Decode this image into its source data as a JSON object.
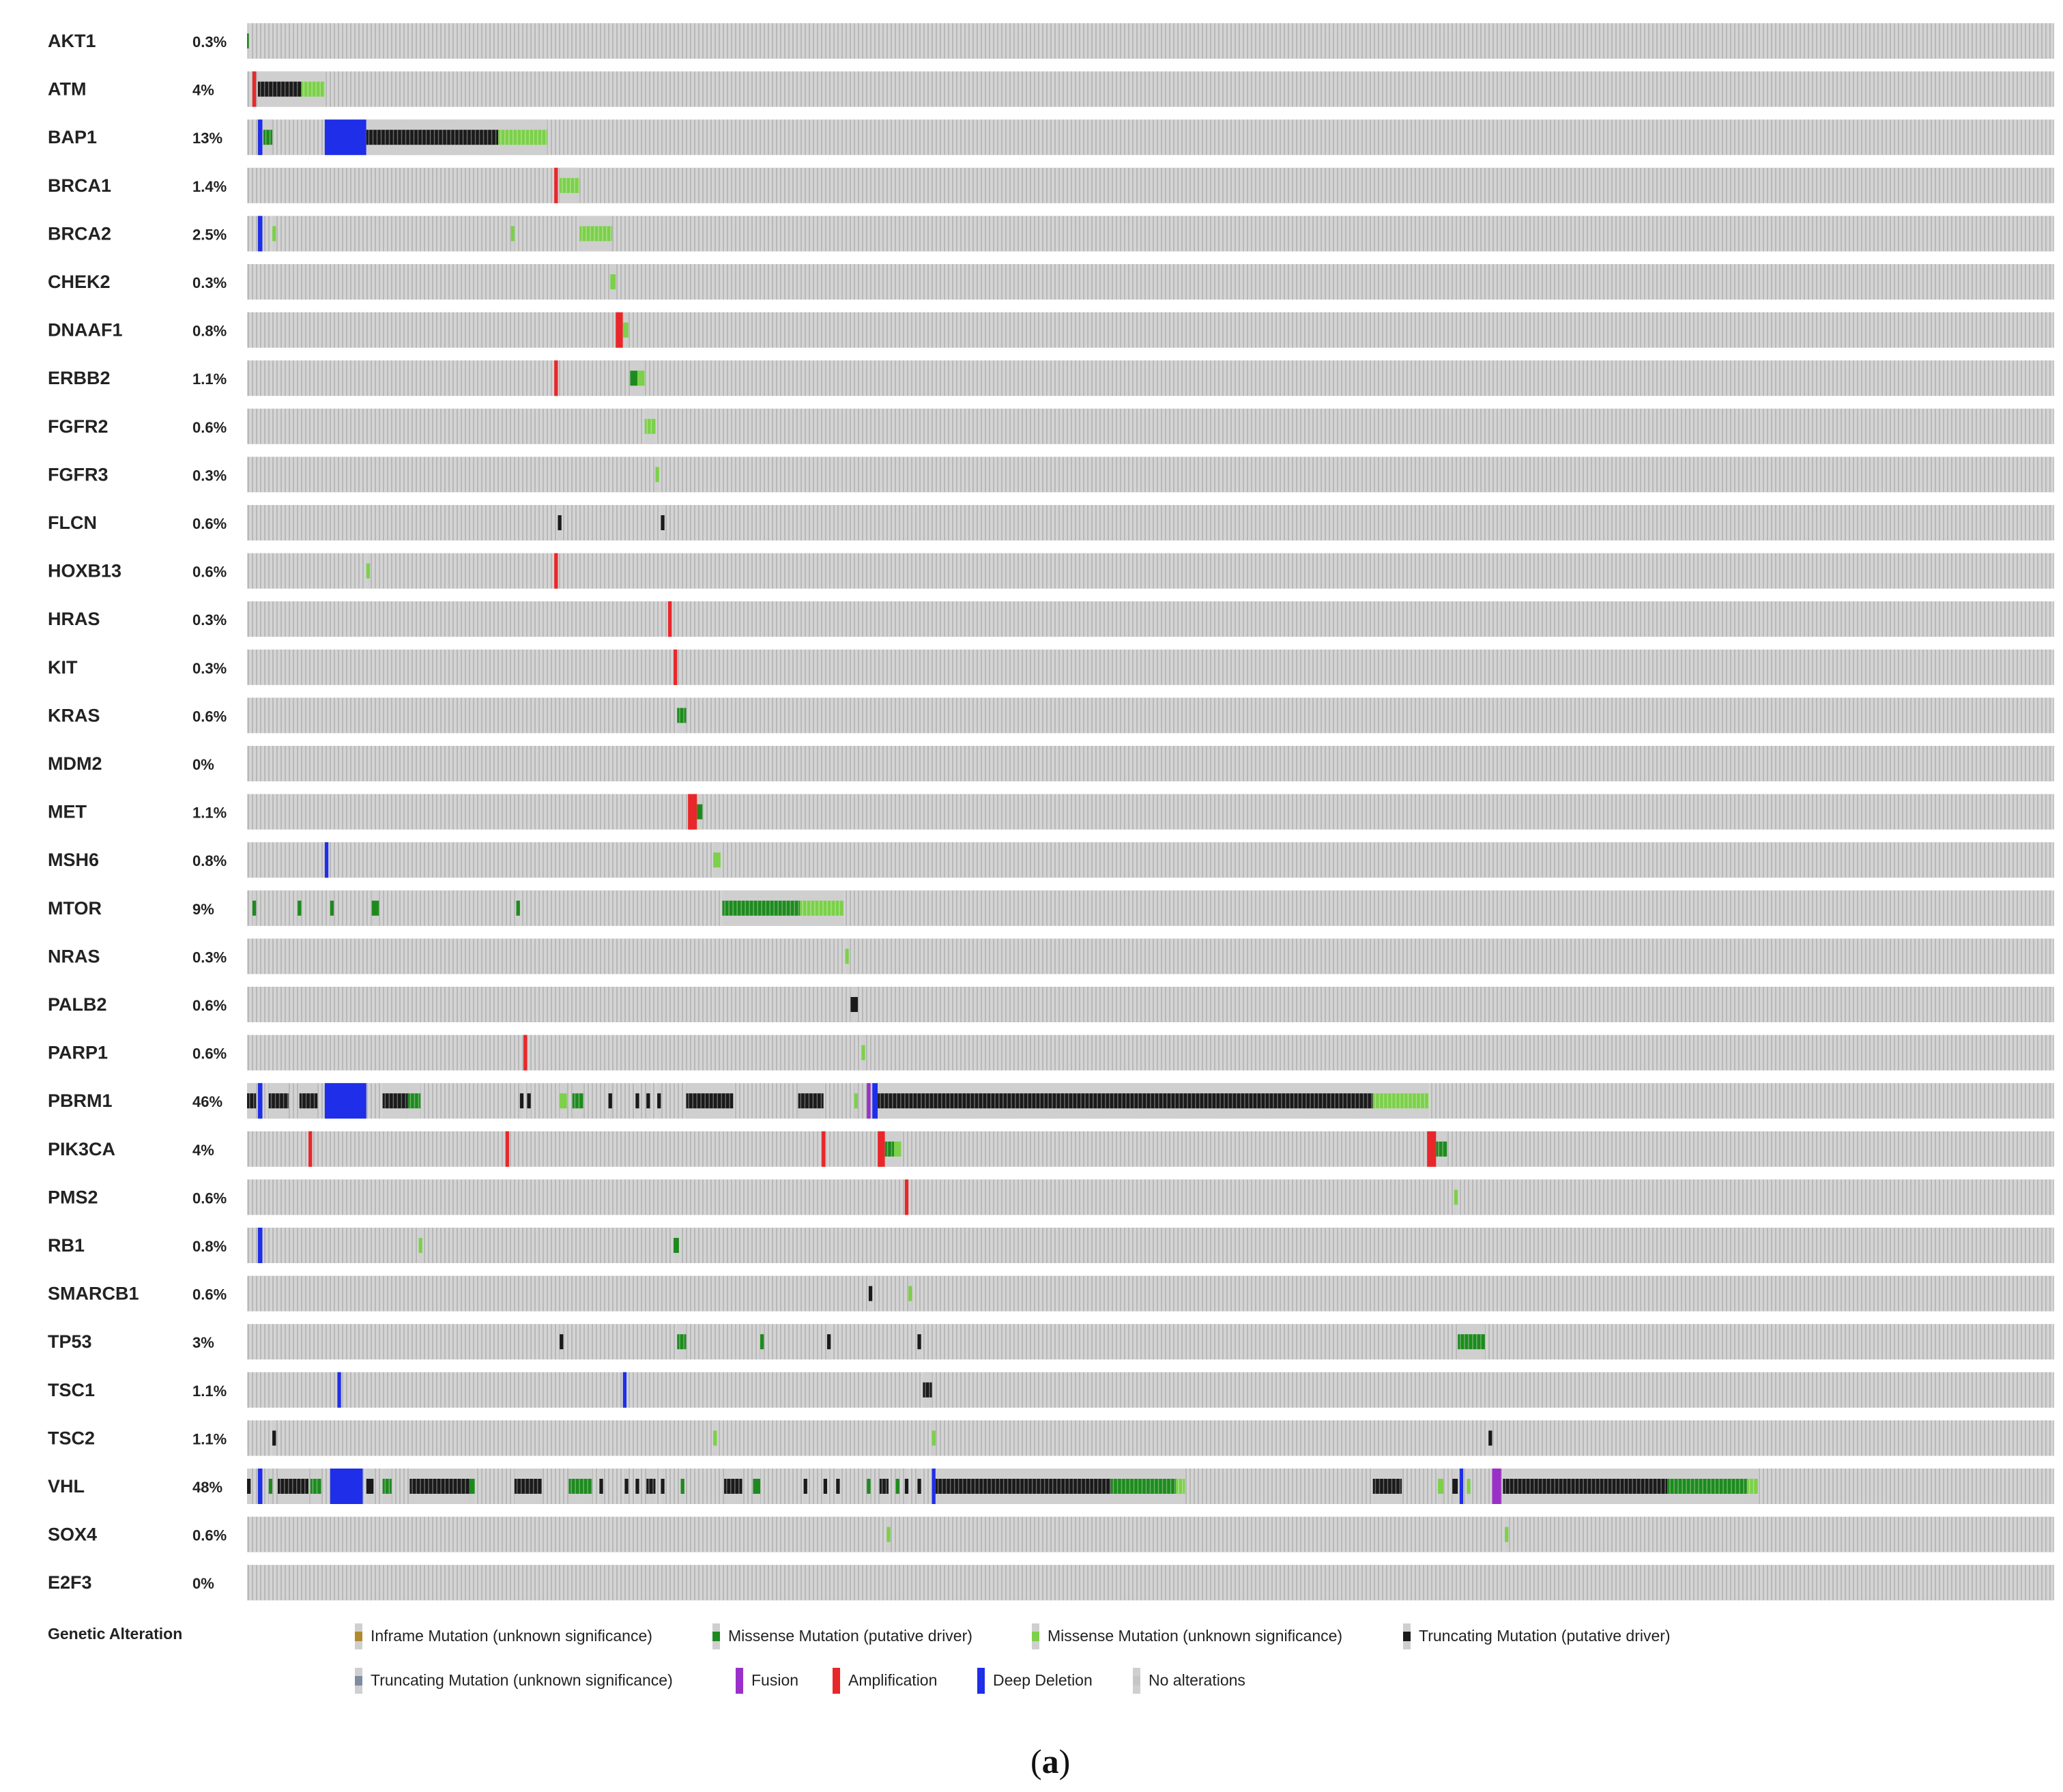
{
  "chart_data": {
    "type": "heatmap",
    "subtype": "oncoprint",
    "colors": {
      "background": "#d4d4d4",
      "stripe": "#b8b8b8",
      "inframe_unknown": "#b08a2c",
      "missense_driver": "#1e8a1e",
      "missense_unknown": "#7cd04a",
      "truncating_driver": "#1a1a1a",
      "truncating_unknown": "#7f8ba0",
      "fusion": "#9b30c8",
      "amplification": "#e8272a",
      "deep_deletion": "#1f2ee8",
      "no_alteration": "#c6c6c6"
    },
    "genes": [
      {
        "name": "AKT1",
        "pct": "0.3%",
        "segs": [
          [
            0.0,
            0.1,
            "missense_driver"
          ]
        ]
      },
      {
        "name": "ATM",
        "pct": "4%",
        "segs": [
          [
            0.3,
            0.5,
            "amplification"
          ],
          [
            0.6,
            3.0,
            "truncating_driver"
          ],
          [
            3.0,
            4.3,
            "missense_unknown"
          ]
        ]
      },
      {
        "name": "BAP1",
        "pct": "13%",
        "segs": [
          [
            0.6,
            0.85,
            "deep_deletion"
          ],
          [
            0.9,
            1.4,
            "missense_driver"
          ],
          [
            4.3,
            6.6,
            "deep_deletion"
          ],
          [
            6.6,
            13.9,
            "truncating_driver"
          ],
          [
            13.9,
            16.6,
            "missense_unknown"
          ]
        ]
      },
      {
        "name": "BRCA1",
        "pct": "1.4%",
        "segs": [
          [
            17.0,
            17.2,
            "amplification"
          ],
          [
            17.3,
            18.4,
            "missense_unknown"
          ]
        ]
      },
      {
        "name": "BRCA2",
        "pct": "2.5%",
        "segs": [
          [
            0.6,
            0.85,
            "deep_deletion"
          ],
          [
            1.4,
            1.6,
            "missense_unknown"
          ],
          [
            14.6,
            14.8,
            "missense_unknown"
          ],
          [
            18.4,
            20.2,
            "missense_unknown"
          ]
        ]
      },
      {
        "name": "CHEK2",
        "pct": "0.3%",
        "segs": [
          [
            20.1,
            20.4,
            "missense_unknown"
          ]
        ]
      },
      {
        "name": "DNAAF1",
        "pct": "0.8%",
        "segs": [
          [
            20.4,
            20.8,
            "amplification"
          ],
          [
            20.8,
            21.1,
            "missense_unknown"
          ]
        ]
      },
      {
        "name": "ERBB2",
        "pct": "1.1%",
        "segs": [
          [
            17.0,
            17.2,
            "amplification"
          ],
          [
            21.2,
            21.6,
            "missense_driver"
          ],
          [
            21.6,
            22.0,
            "missense_unknown"
          ]
        ]
      },
      {
        "name": "FGFR2",
        "pct": "0.6%",
        "segs": [
          [
            22.0,
            22.6,
            "missense_unknown"
          ]
        ]
      },
      {
        "name": "FGFR3",
        "pct": "0.3%",
        "segs": [
          [
            22.6,
            22.8,
            "missense_unknown"
          ]
        ]
      },
      {
        "name": "FLCN",
        "pct": "0.6%",
        "segs": [
          [
            17.2,
            17.4,
            "truncating_driver"
          ],
          [
            22.9,
            23.1,
            "truncating_driver"
          ]
        ]
      },
      {
        "name": "HOXB13",
        "pct": "0.6%",
        "segs": [
          [
            6.6,
            6.8,
            "missense_unknown"
          ],
          [
            17.0,
            17.2,
            "amplification"
          ]
        ]
      },
      {
        "name": "HRAS",
        "pct": "0.3%",
        "segs": [
          [
            23.3,
            23.5,
            "amplification"
          ]
        ]
      },
      {
        "name": "KIT",
        "pct": "0.3%",
        "segs": [
          [
            23.6,
            23.8,
            "amplification"
          ]
        ]
      },
      {
        "name": "KRAS",
        "pct": "0.6%",
        "segs": [
          [
            23.8,
            24.3,
            "missense_driver"
          ]
        ]
      },
      {
        "name": "MDM2",
        "pct": "0%",
        "segs": []
      },
      {
        "name": "MET",
        "pct": "1.1%",
        "segs": [
          [
            24.4,
            24.9,
            "amplification"
          ],
          [
            24.9,
            25.2,
            "missense_driver"
          ]
        ]
      },
      {
        "name": "MSH6",
        "pct": "0.8%",
        "segs": [
          [
            4.3,
            4.5,
            "deep_deletion"
          ],
          [
            25.8,
            26.2,
            "missense_unknown"
          ]
        ]
      },
      {
        "name": "MTOR",
        "pct": "9%",
        "segs": [
          [
            0.3,
            0.5,
            "missense_driver"
          ],
          [
            2.8,
            3.0,
            "missense_driver"
          ],
          [
            4.6,
            4.8,
            "missense_driver"
          ],
          [
            6.9,
            7.3,
            "missense_driver"
          ],
          [
            14.9,
            15.1,
            "missense_driver"
          ],
          [
            26.3,
            30.6,
            "missense_driver"
          ],
          [
            30.6,
            33.0,
            "missense_unknown"
          ]
        ]
      },
      {
        "name": "NRAS",
        "pct": "0.3%",
        "segs": [
          [
            33.1,
            33.3,
            "missense_unknown"
          ]
        ]
      },
      {
        "name": "PALB2",
        "pct": "0.6%",
        "segs": [
          [
            33.4,
            33.8,
            "truncating_driver"
          ]
        ]
      },
      {
        "name": "PARP1",
        "pct": "0.6%",
        "segs": [
          [
            15.3,
            15.5,
            "amplification"
          ],
          [
            34.0,
            34.2,
            "missense_unknown"
          ]
        ]
      },
      {
        "name": "PBRM1",
        "pct": "46%",
        "segs": [
          [
            0.0,
            0.5,
            "truncating_driver"
          ],
          [
            0.6,
            0.85,
            "deep_deletion"
          ],
          [
            1.2,
            2.3,
            "truncating_driver"
          ],
          [
            2.9,
            3.9,
            "truncating_driver"
          ],
          [
            4.3,
            6.6,
            "deep_deletion"
          ],
          [
            7.5,
            8.9,
            "truncating_driver"
          ],
          [
            8.9,
            9.6,
            "missense_driver"
          ],
          [
            15.1,
            15.3,
            "truncating_driver"
          ],
          [
            15.5,
            15.7,
            "truncating_driver"
          ],
          [
            17.3,
            17.7,
            "missense_unknown"
          ],
          [
            18.0,
            18.6,
            "missense_driver"
          ],
          [
            20.0,
            20.2,
            "truncating_driver"
          ],
          [
            21.5,
            21.7,
            "truncating_driver"
          ],
          [
            22.1,
            22.3,
            "truncating_driver"
          ],
          [
            22.7,
            22.9,
            "truncating_driver"
          ],
          [
            24.3,
            26.9,
            "truncating_driver"
          ],
          [
            30.5,
            31.9,
            "truncating_driver"
          ],
          [
            33.6,
            33.8,
            "missense_unknown"
          ],
          [
            34.3,
            34.5,
            "fusion"
          ],
          [
            34.6,
            34.9,
            "deep_deletion"
          ],
          [
            34.9,
            62.3,
            "truncating_driver"
          ],
          [
            62.3,
            65.4,
            "missense_unknown"
          ]
        ]
      },
      {
        "name": "PIK3CA",
        "pct": "4%",
        "segs": [
          [
            3.4,
            3.6,
            "amplification"
          ],
          [
            14.3,
            14.5,
            "amplification"
          ],
          [
            31.8,
            32.0,
            "amplification"
          ],
          [
            34.9,
            35.3,
            "amplification"
          ],
          [
            35.3,
            35.8,
            "missense_driver"
          ],
          [
            35.8,
            36.2,
            "missense_unknown"
          ],
          [
            65.3,
            65.8,
            "amplification"
          ],
          [
            65.8,
            66.4,
            "missense_driver"
          ]
        ]
      },
      {
        "name": "PMS2",
        "pct": "0.6%",
        "segs": [
          [
            36.4,
            36.6,
            "amplification"
          ],
          [
            66.8,
            67.0,
            "missense_unknown"
          ]
        ]
      },
      {
        "name": "RB1",
        "pct": "0.8%",
        "segs": [
          [
            0.6,
            0.85,
            "deep_deletion"
          ],
          [
            9.5,
            9.7,
            "missense_unknown"
          ],
          [
            23.6,
            23.9,
            "missense_driver"
          ]
        ]
      },
      {
        "name": "SMARCB1",
        "pct": "0.6%",
        "segs": [
          [
            34.4,
            34.6,
            "truncating_driver"
          ],
          [
            36.6,
            36.8,
            "missense_unknown"
          ]
        ]
      },
      {
        "name": "TP53",
        "pct": "3%",
        "segs": [
          [
            17.3,
            17.5,
            "truncating_driver"
          ],
          [
            23.8,
            24.3,
            "missense_driver"
          ],
          [
            28.4,
            28.6,
            "missense_driver"
          ],
          [
            32.1,
            32.3,
            "truncating_driver"
          ],
          [
            37.1,
            37.3,
            "truncating_driver"
          ],
          [
            67.0,
            68.5,
            "missense_driver"
          ]
        ]
      },
      {
        "name": "TSC1",
        "pct": "1.1%",
        "segs": [
          [
            5.0,
            5.2,
            "deep_deletion"
          ],
          [
            20.8,
            21.0,
            "deep_deletion"
          ],
          [
            37.4,
            37.9,
            "truncating_driver"
          ]
        ]
      },
      {
        "name": "TSC2",
        "pct": "1.1%",
        "segs": [
          [
            1.4,
            1.6,
            "truncating_driver"
          ],
          [
            25.8,
            26.0,
            "missense_unknown"
          ],
          [
            37.9,
            38.1,
            "missense_unknown"
          ],
          [
            68.7,
            68.9,
            "truncating_driver"
          ]
        ]
      },
      {
        "name": "VHL",
        "pct": "48%",
        "segs": [
          [
            0.0,
            0.2,
            "truncating_driver"
          ],
          [
            0.6,
            0.85,
            "deep_deletion"
          ],
          [
            1.2,
            1.4,
            "missense_driver"
          ],
          [
            1.7,
            3.4,
            "truncating_driver"
          ],
          [
            3.5,
            4.1,
            "missense_driver"
          ],
          [
            4.6,
            6.4,
            "deep_deletion"
          ],
          [
            6.6,
            7.0,
            "truncating_driver"
          ],
          [
            7.5,
            8.0,
            "missense_driver"
          ],
          [
            9.0,
            12.3,
            "truncating_driver"
          ],
          [
            12.3,
            12.6,
            "missense_driver"
          ],
          [
            14.8,
            16.3,
            "truncating_driver"
          ],
          [
            17.8,
            19.1,
            "missense_driver"
          ],
          [
            19.5,
            19.7,
            "truncating_driver"
          ],
          [
            20.9,
            21.1,
            "truncating_driver"
          ],
          [
            21.5,
            21.7,
            "truncating_driver"
          ],
          [
            22.1,
            22.6,
            "truncating_driver"
          ],
          [
            22.9,
            23.1,
            "truncating_driver"
          ],
          [
            24.0,
            24.2,
            "missense_driver"
          ],
          [
            26.4,
            27.4,
            "truncating_driver"
          ],
          [
            28.0,
            28.4,
            "missense_driver"
          ],
          [
            30.8,
            31.0,
            "truncating_driver"
          ],
          [
            31.9,
            32.1,
            "truncating_driver"
          ],
          [
            32.6,
            32.8,
            "truncating_driver"
          ],
          [
            34.3,
            34.5,
            "missense_driver"
          ],
          [
            35.0,
            35.5,
            "truncating_driver"
          ],
          [
            35.9,
            36.1,
            "missense_driver"
          ],
          [
            36.4,
            36.6,
            "truncating_driver"
          ],
          [
            37.1,
            37.3,
            "truncating_driver"
          ],
          [
            37.9,
            38.1,
            "deep_deletion"
          ],
          [
            38.1,
            47.8,
            "truncating_driver"
          ],
          [
            47.8,
            51.4,
            "missense_driver"
          ],
          [
            51.4,
            51.9,
            "missense_unknown"
          ],
          [
            62.3,
            63.9,
            "truncating_driver"
          ],
          [
            65.9,
            66.2,
            "missense_unknown"
          ],
          [
            66.7,
            67.0,
            "truncating_driver"
          ],
          [
            67.1,
            67.3,
            "deep_deletion"
          ],
          [
            67.5,
            67.7,
            "missense_unknown"
          ],
          [
            68.9,
            69.4,
            "fusion"
          ],
          [
            69.5,
            78.6,
            "truncating_driver"
          ],
          [
            78.6,
            83.0,
            "missense_driver"
          ],
          [
            83.0,
            83.6,
            "missense_unknown"
          ]
        ]
      },
      {
        "name": "SOX4",
        "pct": "0.6%",
        "segs": [
          [
            35.4,
            35.6,
            "missense_unknown"
          ],
          [
            69.6,
            69.8,
            "missense_unknown"
          ]
        ]
      },
      {
        "name": "E2F3",
        "pct": "0%",
        "segs": []
      }
    ],
    "legend": {
      "title": "Genetic Alteration",
      "items": [
        {
          "key": "inframe_unknown",
          "label": "Inframe Mutation (unknown significance)"
        },
        {
          "key": "missense_driver",
          "label": "Missense Mutation (putative driver)"
        },
        {
          "key": "missense_unknown",
          "label": "Missense Mutation (unknown significance)"
        },
        {
          "key": "truncating_driver",
          "label": "Truncating Mutation (putative driver)"
        },
        {
          "key": "truncating_unknown",
          "label": "Truncating Mutation (unknown significance)"
        },
        {
          "key": "fusion",
          "label": "Fusion"
        },
        {
          "key": "amplification",
          "label": "Amplification"
        },
        {
          "key": "deep_deletion",
          "label": "Deep Deletion"
        },
        {
          "key": "no_alteration",
          "label": "No alterations"
        }
      ]
    },
    "panel_label": {
      "open": "(",
      "letter": "a",
      "close": ")"
    }
  }
}
